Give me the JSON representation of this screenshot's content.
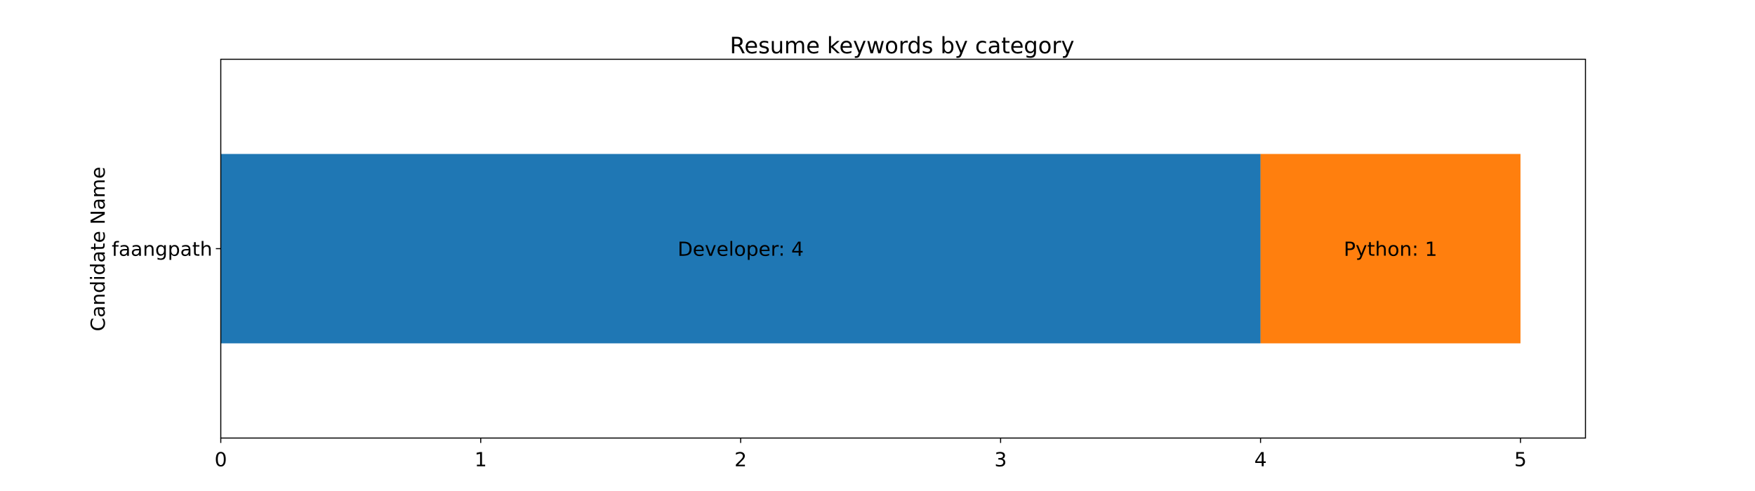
{
  "chart_data": {
    "type": "bar",
    "orientation": "horizontal",
    "stacked": true,
    "title": "Resume keywords by category",
    "xlabel": "",
    "ylabel": "Candidate Name",
    "categories": [
      "faangpath"
    ],
    "xlim": [
      0,
      5.25
    ],
    "xticks": [
      0,
      1,
      2,
      3,
      4,
      5
    ],
    "grid": false,
    "legend": false,
    "segments": [
      {
        "keyword": "Developer",
        "value": 4,
        "label": "Developer: 4",
        "color": "#1f77b4"
      },
      {
        "keyword": "Python",
        "value": 1,
        "label": "Python: 1",
        "color": "#ff7f0e"
      }
    ]
  }
}
